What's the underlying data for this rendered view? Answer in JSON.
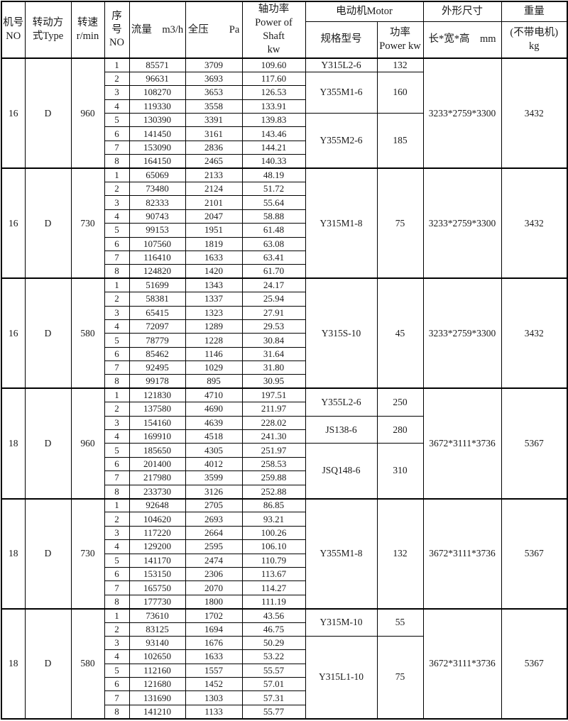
{
  "table": {
    "headers": {
      "machine_no": [
        "机号",
        "NO"
      ],
      "drive_type": [
        "转动方",
        "式Type"
      ],
      "speed": [
        "转速",
        "r/min"
      ],
      "seq": [
        "序",
        "号",
        "NO"
      ],
      "flow": "流量　m3/h",
      "pressure": "全压　　Pa",
      "shaft_power": [
        "轴功率",
        "Power of Shaft",
        "kw"
      ],
      "motor_group": "电动机Motor",
      "motor_model": "规格型号",
      "motor_power": [
        "功率",
        "Power kw"
      ],
      "dim_group": "外形尺寸",
      "dim_sub": "长*宽*高　mm",
      "weight_group": "重量",
      "weight_sub": [
        "(不带电机)",
        "kg"
      ]
    },
    "blocks": [
      {
        "machine_no": "16",
        "drive_type": "D",
        "speed": "960",
        "rows": [
          [
            "1",
            "85571",
            "3709",
            "109.60"
          ],
          [
            "2",
            "96631",
            "3693",
            "117.60"
          ],
          [
            "3",
            "108270",
            "3653",
            "126.53"
          ],
          [
            "4",
            "119330",
            "3558",
            "133.91"
          ],
          [
            "5",
            "130390",
            "3391",
            "139.83"
          ],
          [
            "6",
            "141450",
            "3161",
            "143.46"
          ],
          [
            "7",
            "153090",
            "2836",
            "144.21"
          ],
          [
            "8",
            "164150",
            "2465",
            "140.33"
          ]
        ],
        "motors": [
          {
            "model": "Y315L2-6",
            "power": "132",
            "span": 1
          },
          {
            "model": "Y355M1-6",
            "power": "160",
            "span": 3
          },
          {
            "model": "Y355M2-6",
            "power": "185",
            "span": 4
          }
        ],
        "dimensions": "3233*2759*3300",
        "weight": "3432"
      },
      {
        "machine_no": "16",
        "drive_type": "D",
        "speed": "730",
        "rows": [
          [
            "1",
            "65069",
            "2133",
            "48.19"
          ],
          [
            "2",
            "73480",
            "2124",
            "51.72"
          ],
          [
            "3",
            "82333",
            "2101",
            "55.64"
          ],
          [
            "4",
            "90743",
            "2047",
            "58.88"
          ],
          [
            "5",
            "99153",
            "1951",
            "61.48"
          ],
          [
            "6",
            "107560",
            "1819",
            "63.08"
          ],
          [
            "7",
            "116410",
            "1633",
            "63.41"
          ],
          [
            "8",
            "124820",
            "1420",
            "61.70"
          ]
        ],
        "motors": [
          {
            "model": "Y315M1-8",
            "power": "75",
            "span": 8
          }
        ],
        "dimensions": "3233*2759*3300",
        "weight": "3432"
      },
      {
        "machine_no": "16",
        "drive_type": "D",
        "speed": "580",
        "rows": [
          [
            "1",
            "51699",
            "1343",
            "24.17"
          ],
          [
            "2",
            "58381",
            "1337",
            "25.94"
          ],
          [
            "3",
            "65415",
            "1323",
            "27.91"
          ],
          [
            "4",
            "72097",
            "1289",
            "29.53"
          ],
          [
            "5",
            "78779",
            "1228",
            "30.84"
          ],
          [
            "6",
            "85462",
            "1146",
            "31.64"
          ],
          [
            "7",
            "92495",
            "1029",
            "31.80"
          ],
          [
            "8",
            "99178",
            "895",
            "30.95"
          ]
        ],
        "motors": [
          {
            "model": "Y315S-10",
            "power": "45",
            "span": 8
          }
        ],
        "dimensions": "3233*2759*3300",
        "weight": "3432"
      },
      {
        "machine_no": "18",
        "drive_type": "D",
        "speed": "960",
        "rows": [
          [
            "1",
            "121830",
            "4710",
            "197.51"
          ],
          [
            "2",
            "137580",
            "4690",
            "211.97"
          ],
          [
            "3",
            "154160",
            "4639",
            "228.02"
          ],
          [
            "4",
            "169910",
            "4518",
            "241.30"
          ],
          [
            "5",
            "185650",
            "4305",
            "251.97"
          ],
          [
            "6",
            "201400",
            "4012",
            "258.53"
          ],
          [
            "7",
            "217980",
            "3599",
            "259.88"
          ],
          [
            "8",
            "233730",
            "3126",
            "252.88"
          ]
        ],
        "motors": [
          {
            "model": "Y355L2-6",
            "power": "250",
            "span": 2
          },
          {
            "model": "JS138-6",
            "power": "280",
            "span": 2
          },
          {
            "model": "JSQ148-6",
            "power": "310",
            "span": 4
          }
        ],
        "dimensions": "3672*3111*3736",
        "weight": "5367"
      },
      {
        "machine_no": "18",
        "drive_type": "D",
        "speed": "730",
        "rows": [
          [
            "1",
            "92648",
            "2705",
            "86.85"
          ],
          [
            "2",
            "104620",
            "2693",
            "93.21"
          ],
          [
            "3",
            "117220",
            "2664",
            "100.26"
          ],
          [
            "4",
            "129200",
            "2595",
            "106.10"
          ],
          [
            "5",
            "141170",
            "2474",
            "110.79"
          ],
          [
            "6",
            "153150",
            "2306",
            "113.67"
          ],
          [
            "7",
            "165750",
            "2070",
            "114.27"
          ],
          [
            "8",
            "177730",
            "1800",
            "111.19"
          ]
        ],
        "motors": [
          {
            "model": "Y355M1-8",
            "power": "132",
            "span": 8
          }
        ],
        "dimensions": "3672*3111*3736",
        "weight": "5367"
      },
      {
        "machine_no": "18",
        "drive_type": "D",
        "speed": "580",
        "rows": [
          [
            "1",
            "73610",
            "1702",
            "43.56"
          ],
          [
            "2",
            "83125",
            "1694",
            "46.75"
          ],
          [
            "3",
            "93140",
            "1676",
            "50.29"
          ],
          [
            "4",
            "102650",
            "1633",
            "53.22"
          ],
          [
            "5",
            "112160",
            "1557",
            "55.57"
          ],
          [
            "6",
            "121680",
            "1452",
            "57.01"
          ],
          [
            "7",
            "131690",
            "1303",
            "57.31"
          ],
          [
            "8",
            "141210",
            "1133",
            "55.77"
          ]
        ],
        "motors": [
          {
            "model": "Y315M-10",
            "power": "55",
            "span": 2
          },
          {
            "model": "Y315L1-10",
            "power": "75",
            "span": 6
          }
        ],
        "dimensions": "3672*3111*3736",
        "weight": "5367"
      }
    ]
  },
  "colors": {
    "border": "#000000",
    "text": "#1a1a1a",
    "background": "#ffffff"
  }
}
